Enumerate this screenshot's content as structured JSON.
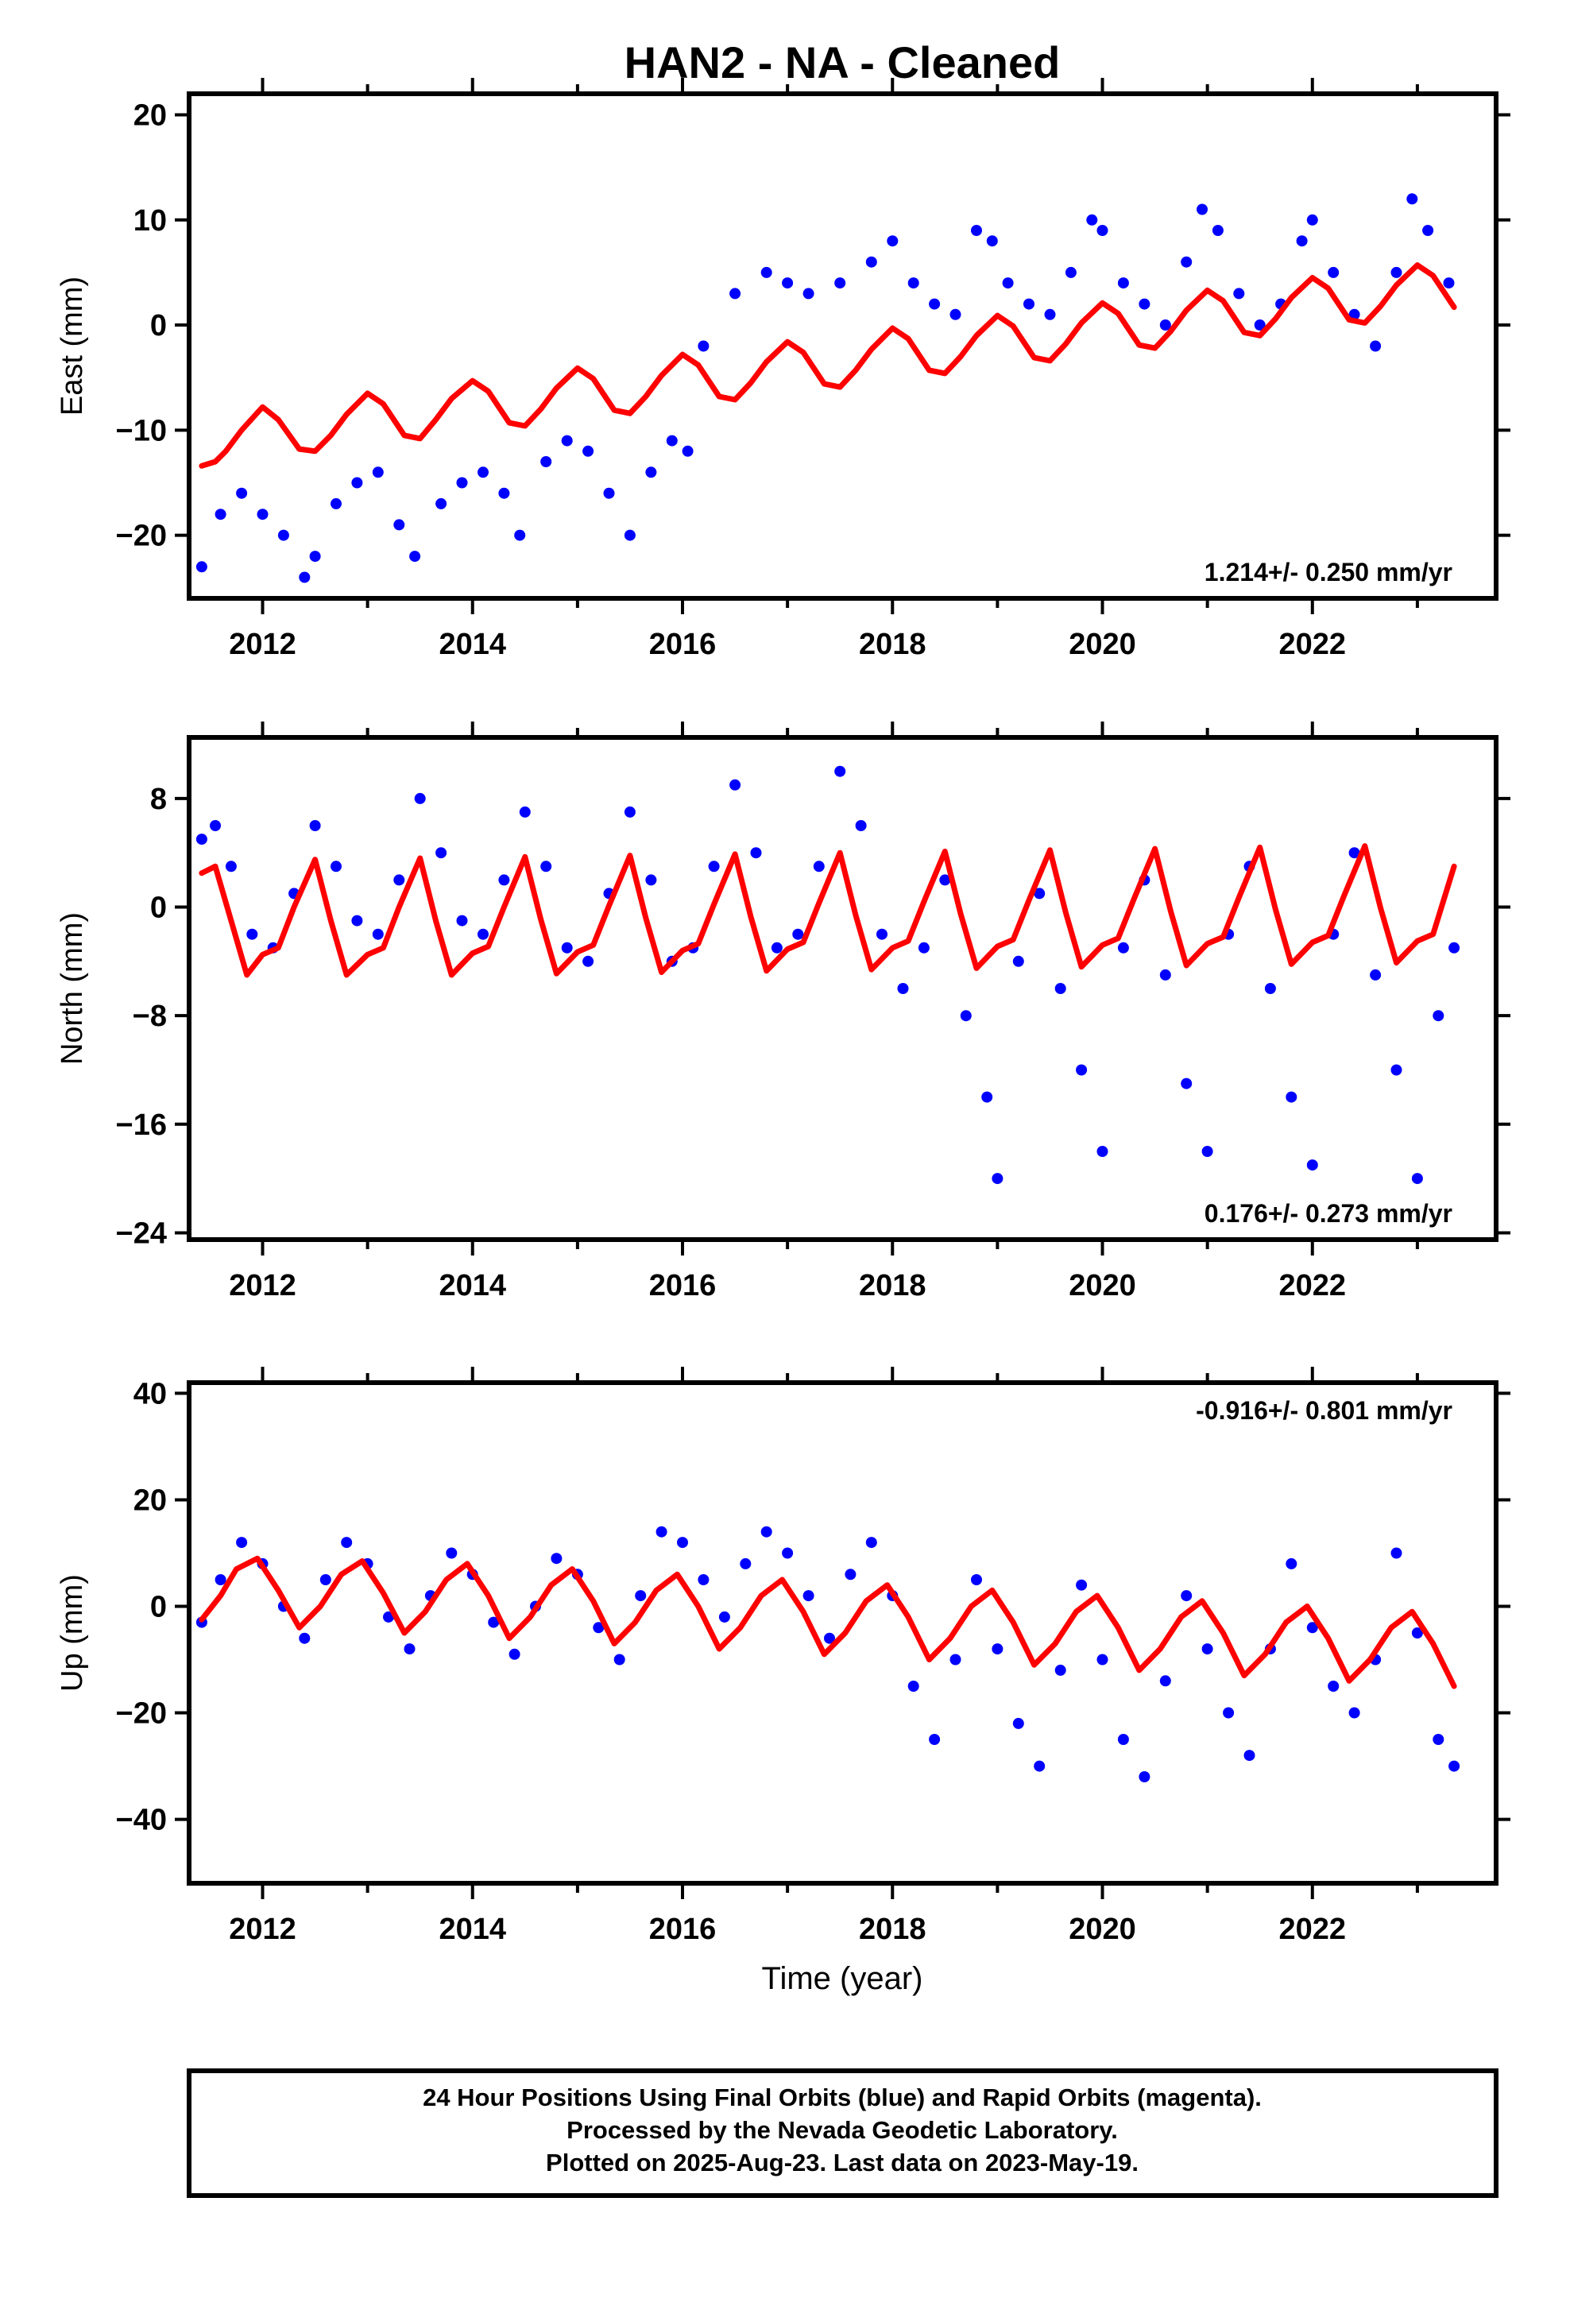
{
  "chart_data": {
    "type": "scatter",
    "title": "HAN2  - NA - Cleaned",
    "xlabel": "Time (year)",
    "xlim": [
      2011.3,
      2023.75
    ],
    "xticks": [
      2012,
      2014,
      2016,
      2018,
      2020,
      2022
    ],
    "colors": {
      "data": "#0000ff",
      "model": "#ff0000"
    },
    "panels": [
      {
        "ylabel": "East (mm)",
        "ylim": [
          -26,
          22
        ],
        "yticks": [
          -20,
          -10,
          0,
          10,
          20
        ],
        "rate": "1.214+/- 0.250 mm/yr",
        "rate_position": "bottom-right",
        "series": [
          {
            "style": "points",
            "color": "#0000ff",
            "x": [
              2011.42,
              2011.6,
              2011.8,
              2012.0,
              2012.2,
              2012.4,
              2012.5,
              2012.7,
              2012.9,
              2013.1,
              2013.3,
              2013.45,
              2013.7,
              2013.9,
              2014.1,
              2014.3,
              2014.45,
              2014.7,
              2014.9,
              2015.1,
              2015.3,
              2015.5,
              2015.7,
              2015.9,
              2016.05,
              2016.2,
              2016.5,
              2016.8,
              2017.0,
              2017.2,
              2017.5,
              2017.8,
              2018.0,
              2018.2,
              2018.4,
              2018.6,
              2018.8,
              2018.95,
              2019.1,
              2019.3,
              2019.5,
              2019.7,
              2019.9,
              2020.0,
              2020.2,
              2020.4,
              2020.6,
              2020.8,
              2020.95,
              2021.1,
              2021.3,
              2021.5,
              2021.7,
              2021.9,
              2022.0,
              2022.2,
              2022.4,
              2022.6,
              2022.8,
              2022.95,
              2023.1,
              2023.3
            ],
            "y": [
              -23,
              -18,
              -16,
              -18,
              -20,
              -24,
              -22,
              -17,
              -15,
              -14,
              -19,
              -22,
              -17,
              -15,
              -14,
              -16,
              -20,
              -13,
              -11,
              -12,
              -16,
              -20,
              -14,
              -11,
              -12,
              -2,
              3,
              5,
              4,
              3,
              4,
              6,
              8,
              4,
              2,
              1,
              9,
              8,
              4,
              2,
              1,
              5,
              10,
              9,
              4,
              2,
              0,
              6,
              11,
              9,
              3,
              0,
              2,
              8,
              10,
              5,
              1,
              -2,
              5,
              12,
              9,
              4
            ]
          },
          {
            "style": "line",
            "color": "#ff0000",
            "x": [
              2011.42,
              2011.55,
              2011.65,
              2011.8,
              2012.0,
              2012.15,
              2012.35,
              2012.5,
              2012.65,
              2012.8,
              2013.0,
              2013.15,
              2013.35,
              2013.5,
              2013.65,
              2013.8,
              2014.0,
              2014.15,
              2014.35,
              2014.5,
              2014.65,
              2014.8,
              2015.0,
              2015.15,
              2015.35,
              2015.5,
              2015.65,
              2015.8,
              2016.0,
              2016.15,
              2016.35,
              2016.5,
              2016.65,
              2016.8,
              2017.0,
              2017.15,
              2017.35,
              2017.5,
              2017.65,
              2017.8,
              2018.0,
              2018.15,
              2018.35,
              2018.5,
              2018.65,
              2018.8,
              2019.0,
              2019.15,
              2019.35,
              2019.5,
              2019.65,
              2019.8,
              2020.0,
              2020.15,
              2020.35,
              2020.5,
              2020.65,
              2020.8,
              2021.0,
              2021.15,
              2021.35,
              2021.5,
              2021.65,
              2021.8,
              2022.0,
              2022.15,
              2022.35,
              2022.5,
              2022.65,
              2022.8,
              2023.0,
              2023.15,
              2023.35
            ],
            "y": [
              -13.4,
              -13,
              -12,
              -10,
              -7.8,
              -9,
              -11.8,
              -12,
              -10.5,
              -8.5,
              -6.5,
              -7.5,
              -10.5,
              -10.8,
              -9,
              -7,
              -5.3,
              -6.3,
              -9.3,
              -9.6,
              -8,
              -6,
              -4.1,
              -5.1,
              -8.1,
              -8.4,
              -6.8,
              -4.8,
              -2.8,
              -3.8,
              -6.8,
              -7.1,
              -5.5,
              -3.5,
              -1.6,
              -2.6,
              -5.6,
              -5.9,
              -4.3,
              -2.3,
              -0.3,
              -1.3,
              -4.3,
              -4.6,
              -3,
              -1,
              0.9,
              -0.1,
              -3.1,
              -3.4,
              -1.8,
              0.2,
              2.1,
              1.1,
              -1.9,
              -2.2,
              -0.6,
              1.4,
              3.3,
              2.3,
              -0.7,
              -1,
              0.6,
              2.6,
              4.5,
              3.5,
              0.5,
              0.2,
              1.8,
              3.8,
              5.7,
              4.7,
              1.7
            ]
          }
        ]
      },
      {
        "ylabel": "North (mm)",
        "ylim": [
          -24.5,
          12.5
        ],
        "yticks": [
          -24,
          -16,
          -8,
          0,
          8
        ],
        "ytick_labels": [
          "−24",
          "−16",
          "−8",
          "0",
          "8"
        ],
        "rate": "0.176+/- 0.273 mm/yr",
        "rate_position": "bottom-right",
        "series": [
          {
            "style": "points",
            "color": "#0000ff",
            "x": [
              2011.42,
              2011.55,
              2011.7,
              2011.9,
              2012.1,
              2012.3,
              2012.5,
              2012.7,
              2012.9,
              2013.1,
              2013.3,
              2013.5,
              2013.7,
              2013.9,
              2014.1,
              2014.3,
              2014.5,
              2014.7,
              2014.9,
              2015.1,
              2015.3,
              2015.5,
              2015.7,
              2015.9,
              2016.1,
              2016.3,
              2016.5,
              2016.7,
              2016.9,
              2017.1,
              2017.3,
              2017.5,
              2017.7,
              2017.9,
              2018.1,
              2018.3,
              2018.5,
              2018.7,
              2018.9,
              2019.0,
              2019.2,
              2019.4,
              2019.6,
              2019.8,
              2020.0,
              2020.2,
              2020.4,
              2020.6,
              2020.8,
              2021.0,
              2021.2,
              2021.4,
              2021.6,
              2021.8,
              2022.0,
              2022.2,
              2022.4,
              2022.6,
              2022.8,
              2023.0,
              2023.2,
              2023.35
            ],
            "y": [
              5,
              6,
              3,
              -2,
              -3,
              1,
              6,
              3,
              -1,
              -2,
              2,
              8,
              4,
              -1,
              -2,
              2,
              7,
              3,
              -3,
              -4,
              1,
              7,
              2,
              -4,
              -3,
              3,
              9,
              4,
              -3,
              -2,
              3,
              10,
              6,
              -2,
              -6,
              -3,
              2,
              -8,
              -14,
              -20,
              -4,
              1,
              -6,
              -12,
              -18,
              -3,
              2,
              -5,
              -13,
              -18,
              -2,
              3,
              -6,
              -14,
              -19,
              -2,
              4,
              -5,
              -12,
              -20,
              -8,
              -3
            ]
          },
          {
            "style": "line",
            "color": "#ff0000",
            "x": [
              2011.42,
              2011.55,
              2011.7,
              2011.85,
              2012.0,
              2012.15,
              2012.3,
              2012.5,
              2012.65,
              2012.8,
              2013.0,
              2013.15,
              2013.3,
              2013.5,
              2013.65,
              2013.8,
              2014.0,
              2014.15,
              2014.3,
              2014.5,
              2014.65,
              2014.8,
              2015.0,
              2015.15,
              2015.3,
              2015.5,
              2015.65,
              2015.8,
              2016.0,
              2016.15,
              2016.3,
              2016.5,
              2016.65,
              2016.8,
              2017.0,
              2017.15,
              2017.3,
              2017.5,
              2017.65,
              2017.8,
              2018.0,
              2018.15,
              2018.3,
              2018.5,
              2018.65,
              2018.8,
              2019.0,
              2019.15,
              2019.3,
              2019.5,
              2019.65,
              2019.8,
              2020.0,
              2020.15,
              2020.3,
              2020.5,
              2020.65,
              2020.8,
              2021.0,
              2021.15,
              2021.3,
              2021.5,
              2021.65,
              2021.8,
              2022.0,
              2022.15,
              2022.3,
              2022.5,
              2022.65,
              2022.8,
              2023.0,
              2023.15,
              2023.35
            ],
            "y": [
              2.5,
              3,
              -1,
              -5,
              -3.5,
              -3,
              0,
              3.5,
              -1,
              -5,
              -3.5,
              -3,
              0,
              3.6,
              -1,
              -5,
              -3.4,
              -2.9,
              0,
              3.7,
              -0.9,
              -4.9,
              -3.3,
              -2.8,
              0.1,
              3.8,
              -0.8,
              -4.8,
              -3.2,
              -2.7,
              0.2,
              3.9,
              -0.7,
              -4.7,
              -3.1,
              -2.6,
              0.3,
              4,
              -0.6,
              -4.6,
              -3,
              -2.5,
              0.4,
              4.1,
              -0.5,
              -4.5,
              -2.9,
              -2.4,
              0.5,
              4.2,
              -0.4,
              -4.4,
              -2.8,
              -2.3,
              0.6,
              4.3,
              -0.3,
              -4.3,
              -2.7,
              -2.2,
              0.7,
              4.4,
              -0.2,
              -4.2,
              -2.6,
              -2.1,
              0.8,
              4.5,
              -0.1,
              -4.1,
              -2.5,
              -2,
              3
            ]
          }
        ]
      },
      {
        "ylabel": "Up (mm)",
        "ylim": [
          -52,
          42
        ],
        "yticks": [
          -40,
          -20,
          0,
          20,
          40
        ],
        "rate": "-0.916+/- 0.801 mm/yr",
        "rate_position": "top-right",
        "series": [
          {
            "style": "points",
            "color": "#0000ff",
            "x": [
              2011.42,
              2011.6,
              2011.8,
              2012.0,
              2012.2,
              2012.4,
              2012.6,
              2012.8,
              2013.0,
              2013.2,
              2013.4,
              2013.6,
              2013.8,
              2014.0,
              2014.2,
              2014.4,
              2014.6,
              2014.8,
              2015.0,
              2015.2,
              2015.4,
              2015.6,
              2015.8,
              2016.0,
              2016.2,
              2016.4,
              2016.6,
              2016.8,
              2017.0,
              2017.2,
              2017.4,
              2017.6,
              2017.8,
              2018.0,
              2018.2,
              2018.4,
              2018.6,
              2018.8,
              2019.0,
              2019.2,
              2019.4,
              2019.6,
              2019.8,
              2020.0,
              2020.2,
              2020.4,
              2020.6,
              2020.8,
              2021.0,
              2021.2,
              2021.4,
              2021.6,
              2021.8,
              2022.0,
              2022.2,
              2022.4,
              2022.6,
              2022.8,
              2023.0,
              2023.2,
              2023.35
            ],
            "y": [
              -3,
              5,
              12,
              8,
              0,
              -6,
              5,
              12,
              8,
              -2,
              -8,
              2,
              10,
              6,
              -3,
              -9,
              0,
              9,
              6,
              -4,
              -10,
              2,
              14,
              12,
              5,
              -2,
              8,
              14,
              10,
              2,
              -6,
              6,
              12,
              2,
              -15,
              -25,
              -10,
              5,
              -8,
              -22,
              -30,
              -12,
              4,
              -10,
              -25,
              -32,
              -14,
              2,
              -8,
              -20,
              -28,
              -8,
              8,
              -4,
              -15,
              -20,
              -10,
              10,
              -5,
              -25,
              -30
            ]
          },
          {
            "style": "line",
            "color": "#ff0000",
            "x": [
              2011.42,
              2011.6,
              2011.75,
              2011.95,
              2012.15,
              2012.35,
              2012.55,
              2012.75,
              2012.95,
              2013.15,
              2013.35,
              2013.55,
              2013.75,
              2013.95,
              2014.15,
              2014.35,
              2014.55,
              2014.75,
              2014.95,
              2015.15,
              2015.35,
              2015.55,
              2015.75,
              2015.95,
              2016.15,
              2016.35,
              2016.55,
              2016.75,
              2016.95,
              2017.15,
              2017.35,
              2017.55,
              2017.75,
              2017.95,
              2018.15,
              2018.35,
              2018.55,
              2018.75,
              2018.95,
              2019.15,
              2019.35,
              2019.55,
              2019.75,
              2019.95,
              2020.15,
              2020.35,
              2020.55,
              2020.75,
              2020.95,
              2021.15,
              2021.35,
              2021.55,
              2021.75,
              2021.95,
              2022.15,
              2022.35,
              2022.55,
              2022.75,
              2022.95,
              2023.15,
              2023.35
            ],
            "y": [
              -2.5,
              2,
              7,
              9,
              3,
              -4,
              0,
              6,
              8.5,
              2.5,
              -5,
              -1,
              5,
              8,
              2,
              -6,
              -2,
              4,
              7,
              1,
              -7,
              -3,
              3,
              6,
              0,
              -8,
              -4,
              2,
              5,
              -1,
              -9,
              -5,
              1,
              4,
              -2,
              -10,
              -6,
              0,
              3,
              -3,
              -11,
              -7,
              -1,
              2,
              -4,
              -12,
              -8,
              -2,
              1,
              -5,
              -13,
              -9,
              -3,
              0,
              -6,
              -14,
              -10,
              -4,
              -1,
              -7,
              -15
            ]
          }
        ]
      }
    ]
  },
  "footer": {
    "line1": "24 Hour Positions Using Final Orbits (blue) and Rapid Orbits (magenta).",
    "line2": "Processed by the Nevada Geodetic Laboratory.",
    "line3": "Plotted on 2025-Aug-23. Last data on 2023-May-19."
  }
}
